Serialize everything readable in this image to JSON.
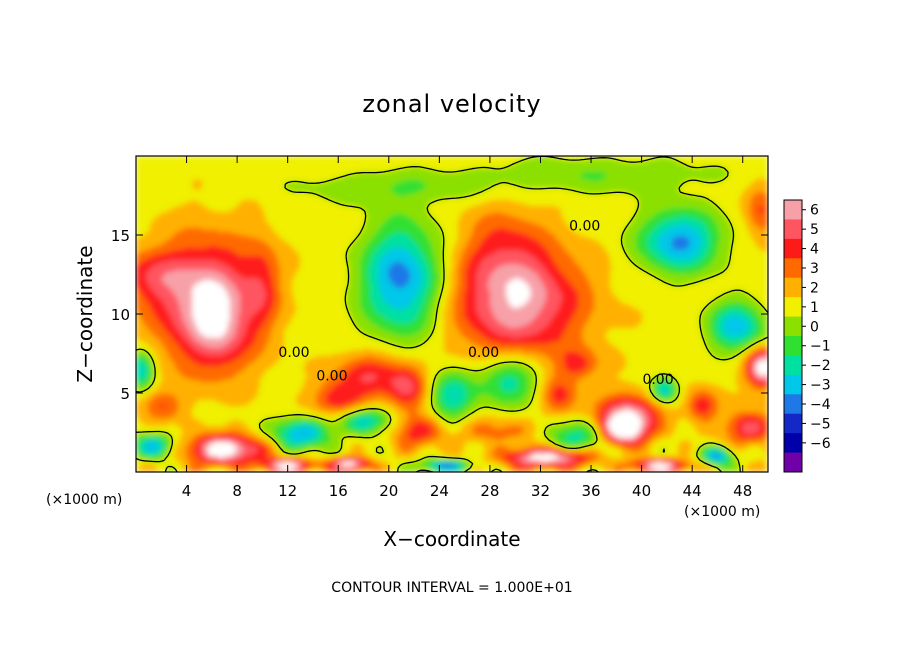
{
  "chart_data": {
    "type": "heatmap",
    "title": "zonal velocity",
    "xlabel": "X−coordinate",
    "ylabel": "Z−coordinate",
    "x_scale_note": "(×1000 m)",
    "z_scale_note": "(×1000 m)",
    "xlim": [
      0,
      50
    ],
    "ylim": [
      0,
      20
    ],
    "x_ticks": [
      4,
      8,
      12,
      16,
      20,
      24,
      28,
      32,
      36,
      40,
      44,
      48
    ],
    "y_ticks": [
      5,
      10,
      15
    ],
    "colorbar": {
      "levels": [
        6,
        5,
        4,
        3,
        2,
        1,
        0,
        -1,
        -2,
        -3,
        -4,
        -5,
        -6
      ],
      "labels": [
        "6",
        "5",
        "4",
        "3",
        "2",
        "1",
        "0",
        "−1",
        "−2",
        "−3",
        "−4",
        "−5",
        "−6"
      ],
      "colors": [
        "#f7a0a8",
        "#ff5560",
        "#ff1a1a",
        "#ff6a00",
        "#ffb000",
        "#f0f000",
        "#8ce000",
        "#30e030",
        "#00e0a0",
        "#00c8e8",
        "#1e78e6",
        "#1428c8",
        "#0000aa",
        "#7000a8"
      ]
    },
    "contour_labels": [
      {
        "text": "0.00",
        "x": 12.5,
        "z": 7.6
      },
      {
        "text": "0.00",
        "x": 15.5,
        "z": 6.1
      },
      {
        "text": "0.00",
        "x": 27.5,
        "z": 7.6
      },
      {
        "text": "0.00",
        "x": 35.5,
        "z": 15.6
      },
      {
        "text": "0.00",
        "x": 41.3,
        "z": 5.9
      }
    ],
    "blobs": [
      {
        "x": 5.5,
        "z": 10.8,
        "rx": 4.0,
        "rz": 3.8,
        "v": 5.4
      },
      {
        "x": 6.8,
        "z": 8.8,
        "rx": 2.2,
        "rz": 2.6,
        "v": 1.8
      },
      {
        "x": 1.0,
        "z": 12.4,
        "rx": 2.8,
        "rz": 1.6,
        "v": 2.2
      },
      {
        "x": 10.0,
        "z": 12.0,
        "rx": 1.4,
        "rz": 2.8,
        "v": 2.0
      },
      {
        "x": 21.0,
        "z": 12.2,
        "rx": 3.2,
        "rz": 3.6,
        "v": -5.2
      },
      {
        "x": 30.2,
        "z": 10.8,
        "rx": 5.0,
        "rz": 3.4,
        "v": 5.2
      },
      {
        "x": 29.0,
        "z": 14.4,
        "rx": 3.2,
        "rz": 2.8,
        "v": 1.6
      },
      {
        "x": 43.0,
        "z": 14.6,
        "rx": 3.2,
        "rz": 2.0,
        "v": -5.0
      },
      {
        "x": 36.0,
        "z": 18.8,
        "rx": 10.0,
        "rz": 1.2,
        "v": -1.6
      },
      {
        "x": 20.0,
        "z": 18.0,
        "rx": 8.0,
        "rz": 1.0,
        "v": -1.4
      },
      {
        "x": 49.5,
        "z": 16.5,
        "rx": 1.2,
        "rz": 1.8,
        "v": 2.4
      },
      {
        "x": 47.5,
        "z": 9.2,
        "rx": 2.2,
        "rz": 1.6,
        "v": -4.4
      },
      {
        "x": 49.6,
        "z": 6.6,
        "rx": 1.3,
        "rz": 1.2,
        "v": 6.5
      },
      {
        "x": 0.4,
        "z": 6.5,
        "rx": 1.0,
        "rz": 1.2,
        "v": -4.2
      },
      {
        "x": 2.0,
        "z": 4.2,
        "rx": 1.6,
        "rz": 1.0,
        "v": 2.2
      },
      {
        "x": 18.5,
        "z": 6.2,
        "rx": 2.6,
        "rz": 1.4,
        "v": 3.2
      },
      {
        "x": 16.0,
        "z": 4.6,
        "rx": 2.0,
        "rz": 1.1,
        "v": 3.0
      },
      {
        "x": 21.5,
        "z": 5.4,
        "rx": 1.6,
        "rz": 1.4,
        "v": 3.4
      },
      {
        "x": 25.0,
        "z": 4.8,
        "rx": 1.8,
        "rz": 1.6,
        "v": -3.6
      },
      {
        "x": 29.5,
        "z": 5.8,
        "rx": 2.4,
        "rz": 1.6,
        "v": -3.6
      },
      {
        "x": 33.5,
        "z": 4.8,
        "rx": 1.4,
        "rz": 1.2,
        "v": 2.6
      },
      {
        "x": 35.0,
        "z": 6.8,
        "rx": 1.6,
        "rz": 1.0,
        "v": 2.4
      },
      {
        "x": 13.0,
        "z": 2.4,
        "rx": 2.2,
        "rz": 1.0,
        "v": -4.6
      },
      {
        "x": 18.0,
        "z": 3.2,
        "rx": 2.0,
        "rz": 0.8,
        "v": -4.0
      },
      {
        "x": 22.5,
        "z": 2.6,
        "rx": 2.0,
        "rz": 1.0,
        "v": 3.0
      },
      {
        "x": 28.5,
        "z": 2.6,
        "rx": 3.0,
        "rz": 0.9,
        "v": 1.8
      },
      {
        "x": 35.0,
        "z": 2.2,
        "rx": 2.6,
        "rz": 1.0,
        "v": -3.2
      },
      {
        "x": 39.0,
        "z": 3.6,
        "rx": 2.4,
        "rz": 1.3,
        "v": 4.8
      },
      {
        "x": 38.5,
        "z": 2.6,
        "rx": 1.6,
        "rz": 0.9,
        "v": 6.5
      },
      {
        "x": 44.8,
        "z": 4.2,
        "rx": 1.2,
        "rz": 1.0,
        "v": 3.2
      },
      {
        "x": 41.8,
        "z": 5.2,
        "rx": 1.0,
        "rz": 0.8,
        "v": -4.2
      },
      {
        "x": 48.5,
        "z": 2.8,
        "rx": 1.8,
        "rz": 1.0,
        "v": 4.0
      },
      {
        "x": 7.0,
        "z": 1.4,
        "rx": 3.0,
        "rz": 0.9,
        "v": 6.5
      },
      {
        "x": 1.5,
        "z": 1.6,
        "rx": 1.6,
        "rz": 0.8,
        "v": -4.4
      },
      {
        "x": 12.0,
        "z": 0.4,
        "rx": 2.0,
        "rz": 0.4,
        "v": 6.0
      },
      {
        "x": 17.0,
        "z": 0.5,
        "rx": 1.6,
        "rz": 0.4,
        "v": 6.0
      },
      {
        "x": 32.5,
        "z": 0.9,
        "rx": 3.2,
        "rz": 0.6,
        "v": 6.5
      },
      {
        "x": 24.5,
        "z": 0.4,
        "rx": 2.0,
        "rz": 0.4,
        "v": -5.0
      },
      {
        "x": 41.5,
        "z": 0.4,
        "rx": 2.2,
        "rz": 0.4,
        "v": 6.0
      },
      {
        "x": 46.0,
        "z": 1.0,
        "rx": 1.2,
        "rz": 0.6,
        "v": -4.8
      }
    ]
  },
  "footer": {
    "contour_interval": "CONTOUR INTERVAL =  1.000E+01"
  }
}
